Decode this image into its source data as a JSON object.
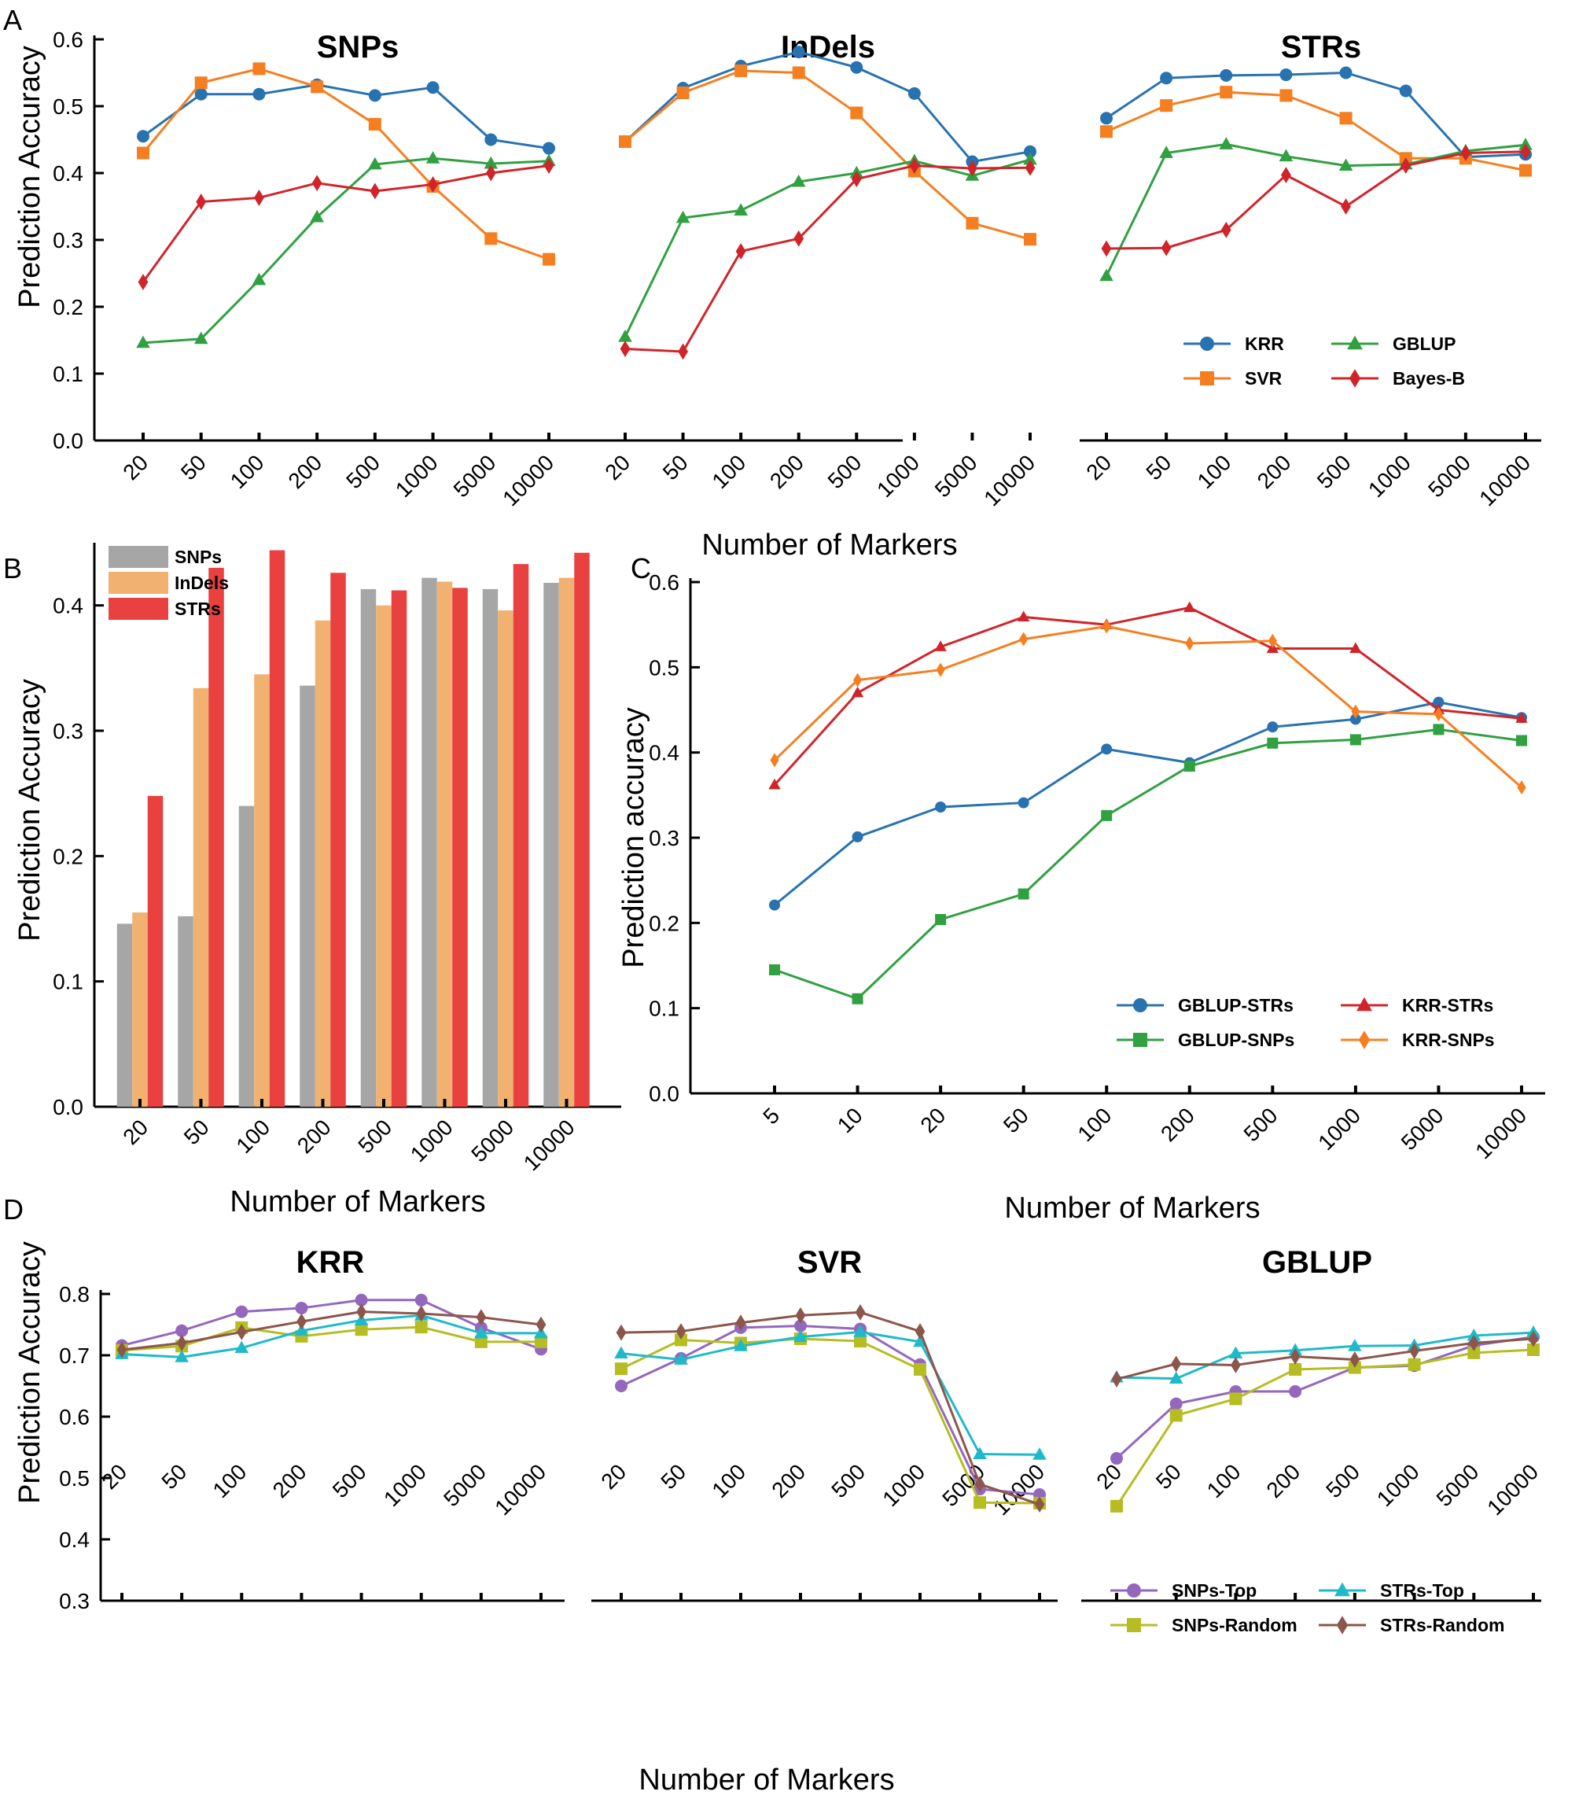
{
  "figure": {
    "x_label_common": "Number of Markers",
    "panel_letters": [
      "A",
      "B",
      "C",
      "D"
    ]
  },
  "chart_data": [
    {
      "id": "A1",
      "panel": "A",
      "type": "line",
      "title": "SNPs",
      "ylabel": "Prediction Accuracy",
      "xlabel": "",
      "ylim": [
        0,
        0.6
      ],
      "yticks": [
        "0.0",
        "0.1",
        "0.2",
        "0.3",
        "0.4",
        "0.5",
        "0.6"
      ],
      "categories": [
        "20",
        "50",
        "100",
        "200",
        "500",
        "1000",
        "5000",
        "10000"
      ],
      "series": [
        {
          "name": "KRR",
          "color": "#2872b0",
          "marker": "circle",
          "values": [
            0.455,
            0.518,
            0.518,
            0.532,
            0.516,
            0.528,
            0.45,
            0.437
          ]
        },
        {
          "name": "SVR",
          "color": "#f57f20",
          "marker": "square",
          "values": [
            0.43,
            0.535,
            0.556,
            0.529,
            0.473,
            0.38,
            0.302,
            0.271
          ]
        },
        {
          "name": "GBLUP",
          "color": "#30a041",
          "marker": "triangle",
          "values": [
            0.146,
            0.152,
            0.24,
            0.334,
            0.413,
            0.422,
            0.414,
            0.418
          ]
        },
        {
          "name": "Bayes-B",
          "color": "#d1242a",
          "marker": "diamond",
          "values": [
            0.237,
            0.357,
            0.363,
            0.385,
            0.373,
            0.383,
            0.4,
            0.411
          ]
        }
      ]
    },
    {
      "id": "A2",
      "panel": "A",
      "type": "line",
      "title": "InDels",
      "ylim": [
        0,
        0.6
      ],
      "categories": [
        "20",
        "50",
        "100",
        "200",
        "500",
        "1000",
        "5000",
        "10000"
      ],
      "series": [
        {
          "name": "KRR",
          "color": "#2872b0",
          "marker": "circle",
          "values": [
            0.447,
            0.527,
            0.56,
            0.581,
            0.558,
            0.519,
            0.417,
            0.432
          ]
        },
        {
          "name": "SVR",
          "color": "#f57f20",
          "marker": "square",
          "values": [
            0.447,
            0.52,
            0.553,
            0.55,
            0.49,
            0.403,
            0.325,
            0.301
          ]
        },
        {
          "name": "GBLUP",
          "color": "#30a041",
          "marker": "triangle",
          "values": [
            0.155,
            0.333,
            0.344,
            0.387,
            0.4,
            0.418,
            0.396,
            0.42
          ]
        },
        {
          "name": "Bayes-B",
          "color": "#d1242a",
          "marker": "diamond",
          "values": [
            0.137,
            0.133,
            0.283,
            0.302,
            0.391,
            0.411,
            0.407,
            0.408
          ]
        }
      ]
    },
    {
      "id": "A3",
      "panel": "A",
      "type": "line",
      "title": "STRs",
      "ylim": [
        0,
        0.6
      ],
      "categories": [
        "20",
        "50",
        "100",
        "200",
        "500",
        "1000",
        "5000",
        "10000"
      ],
      "series": [
        {
          "name": "KRR",
          "color": "#2872b0",
          "marker": "circle",
          "values": [
            0.482,
            0.542,
            0.546,
            0.547,
            0.55,
            0.523,
            0.424,
            0.428
          ]
        },
        {
          "name": "SVR",
          "color": "#f57f20",
          "marker": "square",
          "values": [
            0.462,
            0.501,
            0.521,
            0.516,
            0.482,
            0.422,
            0.422,
            0.404
          ]
        },
        {
          "name": "GBLUP",
          "color": "#30a041",
          "marker": "triangle",
          "values": [
            0.246,
            0.43,
            0.443,
            0.425,
            0.411,
            0.413,
            0.433,
            0.442
          ]
        },
        {
          "name": "Bayes-B",
          "color": "#d1242a",
          "marker": "diamond",
          "values": [
            0.287,
            0.288,
            0.315,
            0.397,
            0.35,
            0.411,
            0.43,
            0.432
          ]
        }
      ],
      "legend": {
        "position": "lower-right",
        "entries": [
          "KRR",
          "GBLUP",
          "SVR",
          "Bayes-B"
        ]
      }
    },
    {
      "id": "B",
      "panel": "B",
      "type": "bar",
      "title": "",
      "ylabel": "Prediction Accuracy",
      "xlabel": "Number of Markers",
      "ylim": [
        0,
        0.45
      ],
      "yticks": [
        "0.0",
        "0.1",
        "0.2",
        "0.3",
        "0.4"
      ],
      "categories": [
        "20",
        "50",
        "100",
        "200",
        "500",
        "1000",
        "5000",
        "10000"
      ],
      "series": [
        {
          "name": "SNPs",
          "color": "#a6a6a6",
          "values": [
            0.146,
            0.152,
            0.24,
            0.336,
            0.413,
            0.422,
            0.413,
            0.418
          ]
        },
        {
          "name": "InDels",
          "color": "#f1b170",
          "values": [
            0.155,
            0.334,
            0.345,
            0.388,
            0.4,
            0.419,
            0.396,
            0.422
          ]
        },
        {
          "name": "STRs",
          "color": "#e8413f",
          "values": [
            0.248,
            0.43,
            0.444,
            0.426,
            0.412,
            0.414,
            0.433,
            0.442
          ]
        }
      ],
      "legend": {
        "position": "top-left"
      }
    },
    {
      "id": "C",
      "panel": "C",
      "type": "line",
      "title": "",
      "ylabel": "Prediction accuracy",
      "xlabel": "Number of Markers",
      "ylim": [
        0,
        0.6
      ],
      "yticks": [
        "0.0",
        "0.1",
        "0.2",
        "0.3",
        "0.4",
        "0.5",
        "0.6"
      ],
      "categories": [
        "5",
        "10",
        "20",
        "50",
        "100",
        "200",
        "500",
        "1000",
        "5000",
        "10000"
      ],
      "series": [
        {
          "name": "GBLUP-STRs",
          "color": "#2872b0",
          "marker": "circle",
          "values": [
            0.221,
            0.301,
            0.336,
            0.341,
            0.404,
            0.388,
            0.43,
            0.439,
            0.459,
            0.441
          ]
        },
        {
          "name": "GBLUP-SNPs",
          "color": "#30a041",
          "marker": "square",
          "values": [
            0.145,
            0.111,
            0.204,
            0.234,
            0.326,
            0.384,
            0.411,
            0.415,
            0.427,
            0.414
          ]
        },
        {
          "name": "KRR-STRs",
          "color": "#d1242a",
          "marker": "triangle",
          "values": [
            0.362,
            0.47,
            0.524,
            0.559,
            0.55,
            0.57,
            0.522,
            0.522,
            0.45,
            0.44
          ]
        },
        {
          "name": "KRR-SNPs",
          "color": "#f57f20",
          "marker": "diamond",
          "values": [
            0.391,
            0.485,
            0.497,
            0.533,
            0.548,
            0.528,
            0.531,
            0.448,
            0.445,
            0.359
          ]
        }
      ],
      "legend": {
        "position": "lower-right",
        "entries": [
          "GBLUP-STRs",
          "KRR-STRs",
          "GBLUP-SNPs",
          "KRR-SNPs"
        ]
      }
    },
    {
      "id": "D1",
      "panel": "D",
      "type": "line",
      "title": "KRR",
      "ylabel": "Prediction Accuracy",
      "xlabel": "",
      "ylim": [
        0.3,
        0.8
      ],
      "yticks": [
        "0.3",
        "0.4",
        "0.5",
        "0.6",
        "0.7",
        "0.8"
      ],
      "categories": [
        "20",
        "50",
        "100",
        "200",
        "500",
        "1000",
        "5000",
        "10000"
      ],
      "series": [
        {
          "name": "SNPs-Top",
          "color": "#9467bd",
          "marker": "circle",
          "values": [
            0.716,
            0.74,
            0.771,
            0.777,
            0.79,
            0.79,
            0.745,
            0.71
          ]
        },
        {
          "name": "SNPs-Random",
          "color": "#b5bd22",
          "marker": "square",
          "values": [
            0.708,
            0.715,
            0.745,
            0.731,
            0.742,
            0.746,
            0.722,
            0.722
          ]
        },
        {
          "name": "STRs-Top",
          "color": "#1fbac9",
          "marker": "triangle",
          "values": [
            0.702,
            0.697,
            0.712,
            0.74,
            0.757,
            0.765,
            0.736,
            0.736
          ]
        },
        {
          "name": "STRs-Random",
          "color": "#8c564b",
          "marker": "diamond",
          "values": [
            0.709,
            0.72,
            0.738,
            0.755,
            0.771,
            0.768,
            0.762,
            0.75
          ]
        }
      ]
    },
    {
      "id": "D2",
      "panel": "D",
      "type": "line",
      "title": "SVR",
      "ylim": [
        0.3,
        0.8
      ],
      "categories": [
        "20",
        "50",
        "100",
        "200",
        "500",
        "1000",
        "5000",
        "10000"
      ],
      "series": [
        {
          "name": "SNPs-Top",
          "color": "#9467bd",
          "marker": "circle",
          "values": [
            0.65,
            0.695,
            0.745,
            0.748,
            0.743,
            0.685,
            0.482,
            0.473
          ]
        },
        {
          "name": "SNPs-Random",
          "color": "#b5bd22",
          "marker": "square",
          "values": [
            0.678,
            0.725,
            0.72,
            0.727,
            0.723,
            0.677,
            0.46,
            0.459
          ]
        },
        {
          "name": "STRs-Top",
          "color": "#1fbac9",
          "marker": "triangle",
          "values": [
            0.703,
            0.693,
            0.715,
            0.73,
            0.738,
            0.722,
            0.539,
            0.538
          ]
        },
        {
          "name": "STRs-Random",
          "color": "#8c564b",
          "marker": "diamond",
          "values": [
            0.737,
            0.739,
            0.753,
            0.765,
            0.77,
            0.739,
            0.49,
            0.457
          ]
        }
      ]
    },
    {
      "id": "D3",
      "panel": "D",
      "type": "line",
      "title": "GBLUP",
      "ylim": [
        0.3,
        0.8
      ],
      "categories": [
        "20",
        "50",
        "100",
        "200",
        "500",
        "1000",
        "5000",
        "10000"
      ],
      "series": [
        {
          "name": "SNPs-Top",
          "color": "#9467bd",
          "marker": "circle",
          "values": [
            0.532,
            0.621,
            0.641,
            0.641,
            0.68,
            0.683,
            0.716,
            0.73
          ]
        },
        {
          "name": "SNPs-Random",
          "color": "#b5bd22",
          "marker": "square",
          "values": [
            0.454,
            0.602,
            0.629,
            0.677,
            0.68,
            0.685,
            0.704,
            0.709
          ]
        },
        {
          "name": "STRs-Top",
          "color": "#1fbac9",
          "marker": "triangle",
          "values": [
            0.664,
            0.662,
            0.703,
            0.708,
            0.715,
            0.716,
            0.732,
            0.737
          ]
        },
        {
          "name": "STRs-Random",
          "color": "#8c564b",
          "marker": "diamond",
          "values": [
            0.661,
            0.686,
            0.684,
            0.698,
            0.693,
            0.707,
            0.72,
            0.727
          ]
        }
      ],
      "legend": {
        "position": "lower-right",
        "entries": [
          "SNPs-Top",
          "STRs-Top",
          "SNPs-Random",
          "STRs-Random"
        ]
      }
    }
  ]
}
